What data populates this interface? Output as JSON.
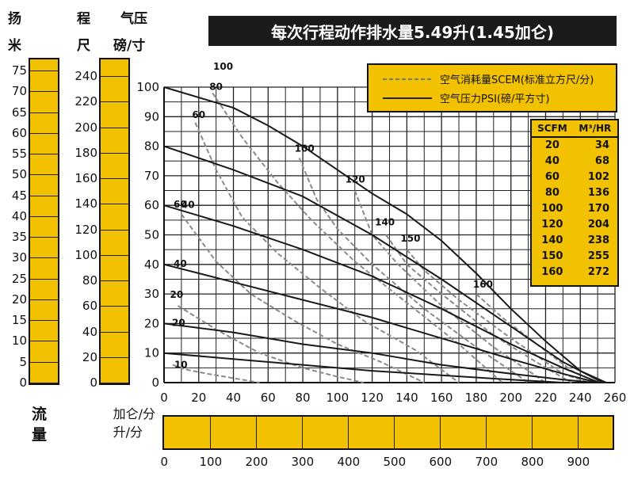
{
  "headers": {
    "head_col1_a": "扬",
    "head_col1_b": "米",
    "head_col2_a": "程",
    "head_col2_b": "尺",
    "head_col3_a": "气压",
    "head_col3_b": "磅/寸"
  },
  "head_ticks": {
    "meters": [
      "75",
      "70",
      "65",
      "60",
      "55",
      "50",
      "45",
      "40",
      "35",
      "30",
      "25",
      "20",
      "15",
      "10",
      "5",
      "0"
    ],
    "feet": [
      "240",
      "220",
      "200",
      "180",
      "160",
      "140",
      "120",
      "100",
      "80",
      "60",
      "40",
      "20",
      "0"
    ]
  },
  "flow_axis": {
    "flow_label_a": "流",
    "flow_label_b": "量",
    "gpm_unit": "加仑/分",
    "lpm_unit": "升/分",
    "lpm_ticks": [
      "0",
      "100",
      "200",
      "300",
      "400",
      "500",
      "600",
      "700",
      "800",
      "900"
    ]
  },
  "legend": {
    "air_consumption": "空气消耗量SCEM(标准立方尺/分)",
    "air_pressure": "空气压力PSI(磅/平方寸)"
  },
  "conversion": {
    "head_scfm": "SCFM",
    "head_m3hr": "M³/HR",
    "rows": [
      [
        "20",
        "34"
      ],
      [
        "40",
        "68"
      ],
      [
        "60",
        "102"
      ],
      [
        "80",
        "136"
      ],
      [
        "100",
        "170"
      ],
      [
        "120",
        "204"
      ],
      [
        "140",
        "238"
      ],
      [
        "150",
        "255"
      ],
      [
        "160",
        "272"
      ]
    ]
  },
  "chart_data": {
    "type": "line",
    "title": "每次行程动作排水量5.49升(1.45加仑)",
    "xlabel": "加仑/分",
    "ylabel": "气压 磅/寸",
    "xlim": [
      0,
      260
    ],
    "ylim": [
      0,
      100
    ],
    "x_ticks": [
      0,
      20,
      40,
      60,
      80,
      100,
      120,
      140,
      160,
      180,
      200,
      220,
      240,
      260
    ],
    "y_ticks": [
      0,
      10,
      20,
      30,
      40,
      50,
      60,
      70,
      80,
      90,
      100
    ],
    "grid": true,
    "pressure_series": [
      {
        "label": "100",
        "x": [
          0,
          40,
          60,
          80,
          100,
          120,
          140,
          160,
          180,
          200,
          220,
          240,
          255
        ],
        "y": [
          100,
          93,
          87,
          80,
          72,
          64,
          57,
          48,
          37,
          25,
          14,
          4,
          0
        ]
      },
      {
        "label": "80",
        "x": [
          0,
          40,
          80,
          120,
          160,
          200,
          230,
          253
        ],
        "y": [
          80,
          72,
          63,
          50,
          35,
          19,
          7,
          0
        ]
      },
      {
        "label": "60",
        "x": [
          0,
          40,
          80,
          120,
          160,
          200,
          230,
          251
        ],
        "y": [
          60,
          53,
          45,
          36,
          25,
          13,
          5,
          0
        ]
      },
      {
        "label": "40",
        "x": [
          0,
          40,
          80,
          120,
          160,
          200,
          230,
          250
        ],
        "y": [
          40,
          34,
          28,
          22,
          15,
          8,
          3,
          0
        ]
      },
      {
        "label": "20",
        "x": [
          0,
          40,
          80,
          120,
          160,
          200,
          230,
          248
        ],
        "y": [
          20,
          17,
          13,
          10,
          6,
          3,
          1,
          0
        ]
      },
      {
        "label": "10",
        "x": [
          0,
          40,
          80,
          120,
          160,
          200,
          230
        ],
        "y": [
          10,
          8,
          6,
          4,
          2.5,
          1,
          0
        ]
      }
    ],
    "air_series": [
      {
        "label": "10",
        "x": [
          5,
          12,
          25,
          40,
          55
        ],
        "y": [
          6,
          4.5,
          3,
          1.5,
          0
        ]
      },
      {
        "label": "20",
        "x": [
          8,
          30,
          55,
          80,
          100,
          115
        ],
        "y": [
          26,
          18,
          10,
          5,
          2,
          0
        ]
      },
      {
        "label": "40",
        "x": [
          10,
          30,
          50,
          75,
          100,
          125,
          150
        ],
        "y": [
          57,
          41,
          30,
          21,
          13,
          7,
          0
        ]
      },
      {
        "label": "60",
        "x": [
          18,
          30,
          45,
          65,
          90,
          115,
          145,
          170
        ],
        "y": [
          88,
          72,
          56,
          44,
          32,
          21,
          11,
          0
        ]
      },
      {
        "label": "80",
        "x": [
          28,
          45,
          65,
          85,
          110,
          140,
          170,
          195
        ],
        "y": [
          98,
          83,
          68,
          55,
          41,
          27,
          13,
          0
        ]
      },
      {
        "label": "100",
        "x": [
          78,
          88,
          100,
          120,
          150,
          180,
          210
        ],
        "y": [
          76,
          62,
          52,
          40,
          25,
          12,
          0
        ]
      },
      {
        "label": "120",
        "x": [
          110,
          120,
          135,
          160,
          190,
          220
        ],
        "y": [
          65,
          50,
          40,
          26,
          12,
          0
        ]
      },
      {
        "label": "140",
        "x": [
          128,
          140,
          160,
          190,
          220,
          235
        ],
        "y": [
          50,
          40,
          30,
          16,
          5,
          0
        ]
      },
      {
        "label": "150",
        "x": [
          140,
          150,
          170,
          200,
          230,
          245
        ],
        "y": [
          45,
          38,
          28,
          15,
          3,
          0
        ]
      },
      {
        "label": "160",
        "x": [
          180,
          195,
          215,
          235,
          250
        ],
        "y": [
          30,
          22,
          13,
          4,
          0
        ]
      }
    ]
  }
}
